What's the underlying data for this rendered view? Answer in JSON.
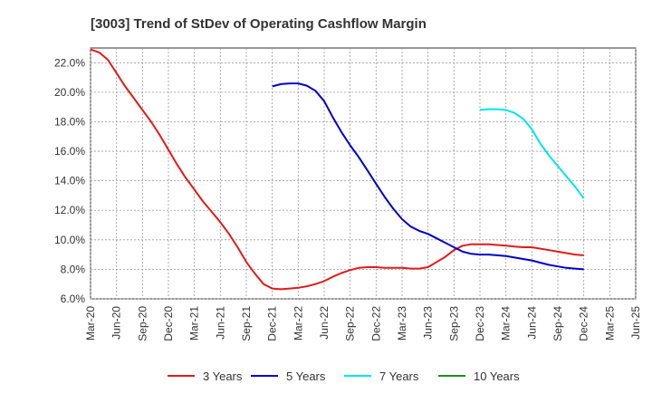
{
  "chart_data": {
    "type": "line",
    "title": "[3003]  Trend of StDev of Operating Cashflow Margin",
    "xlabel": "",
    "ylabel": "",
    "ylim": [
      6.0,
      23.0
    ],
    "y_ticks": [
      "6.0%",
      "8.0%",
      "10.0%",
      "12.0%",
      "14.0%",
      "16.0%",
      "18.0%",
      "20.0%",
      "22.0%"
    ],
    "y_tick_values": [
      6,
      8,
      10,
      12,
      14,
      16,
      18,
      20,
      22
    ],
    "x_ticks": [
      "Mar-20",
      "Jun-20",
      "Sep-20",
      "Dec-20",
      "Mar-21",
      "Jun-21",
      "Sep-21",
      "Dec-21",
      "Mar-22",
      "Jun-22",
      "Sep-22",
      "Dec-22",
      "Mar-23",
      "Jun-23",
      "Sep-23",
      "Dec-23",
      "Mar-24",
      "Jun-24",
      "Sep-24",
      "Dec-24",
      "Mar-25",
      "Jun-25"
    ],
    "grid": true,
    "legend_position": "bottom",
    "series": [
      {
        "name": "3 Years",
        "color": "#e31a1c",
        "x": [
          "Mar-20",
          "Apr-20",
          "May-20",
          "Jun-20",
          "Jul-20",
          "Aug-20",
          "Sep-20",
          "Oct-20",
          "Nov-20",
          "Dec-20",
          "Jan-21",
          "Feb-21",
          "Mar-21",
          "Apr-21",
          "May-21",
          "Jun-21",
          "Jul-21",
          "Aug-21",
          "Sep-21",
          "Oct-21",
          "Nov-21",
          "Dec-21",
          "Jan-22",
          "Feb-22",
          "Mar-22",
          "Apr-22",
          "May-22",
          "Jun-22",
          "Jul-22",
          "Aug-22",
          "Sep-22",
          "Oct-22",
          "Nov-22",
          "Dec-22",
          "Jan-23",
          "Feb-23",
          "Mar-23",
          "Apr-23",
          "May-23",
          "Jun-23",
          "Jul-23",
          "Aug-23",
          "Sep-23",
          "Oct-23",
          "Nov-23",
          "Dec-23",
          "Jan-24",
          "Feb-24",
          "Mar-24",
          "Apr-24",
          "May-24",
          "Jun-24",
          "Jul-24",
          "Aug-24",
          "Sep-24",
          "Oct-24",
          "Nov-24",
          "Dec-24"
        ],
        "values": [
          22.9,
          22.7,
          22.2,
          21.3,
          20.4,
          19.6,
          18.8,
          18.0,
          17.1,
          16.1,
          15.1,
          14.2,
          13.4,
          12.6,
          11.9,
          11.2,
          10.4,
          9.5,
          8.5,
          7.7,
          7.0,
          6.7,
          6.65,
          6.7,
          6.75,
          6.85,
          7.0,
          7.2,
          7.5,
          7.75,
          7.95,
          8.1,
          8.15,
          8.15,
          8.1,
          8.1,
          8.1,
          8.05,
          8.05,
          8.15,
          8.5,
          8.85,
          9.3,
          9.6,
          9.7,
          9.7,
          9.7,
          9.65,
          9.6,
          9.55,
          9.5,
          9.5,
          9.4,
          9.3,
          9.2,
          9.1,
          9.0,
          8.95
        ]
      },
      {
        "name": "5 Years",
        "color": "#0000cc",
        "x": [
          "Dec-21",
          "Jan-22",
          "Feb-22",
          "Mar-22",
          "Apr-22",
          "May-22",
          "Jun-22",
          "Jul-22",
          "Aug-22",
          "Sep-22",
          "Oct-22",
          "Nov-22",
          "Dec-22",
          "Jan-23",
          "Feb-23",
          "Mar-23",
          "Apr-23",
          "May-23",
          "Jun-23",
          "Jul-23",
          "Aug-23",
          "Sep-23",
          "Oct-23",
          "Nov-23",
          "Dec-23",
          "Jan-24",
          "Feb-24",
          "Mar-24",
          "Apr-24",
          "May-24",
          "Jun-24",
          "Jul-24",
          "Aug-24",
          "Sep-24",
          "Oct-24",
          "Nov-24",
          "Dec-24"
        ],
        "values": [
          20.4,
          20.55,
          20.6,
          20.6,
          20.45,
          20.1,
          19.4,
          18.3,
          17.3,
          16.4,
          15.6,
          14.7,
          13.8,
          12.9,
          12.1,
          11.4,
          10.9,
          10.6,
          10.4,
          10.1,
          9.8,
          9.5,
          9.2,
          9.05,
          9.0,
          9.0,
          8.95,
          8.9,
          8.8,
          8.7,
          8.6,
          8.45,
          8.3,
          8.2,
          8.1,
          8.05,
          8.0
        ]
      },
      {
        "name": "7 Years",
        "color": "#00e5ee",
        "x": [
          "Dec-23",
          "Jan-24",
          "Feb-24",
          "Mar-24",
          "Apr-24",
          "May-24",
          "Jun-24",
          "Jul-24",
          "Aug-24",
          "Sep-24",
          "Oct-24",
          "Nov-24",
          "Dec-24"
        ],
        "values": [
          18.8,
          18.85,
          18.85,
          18.8,
          18.6,
          18.2,
          17.5,
          16.5,
          15.7,
          15.0,
          14.3,
          13.6,
          12.8
        ]
      },
      {
        "name": "10 Years",
        "color": "#228b22",
        "x": [],
        "values": []
      }
    ]
  }
}
